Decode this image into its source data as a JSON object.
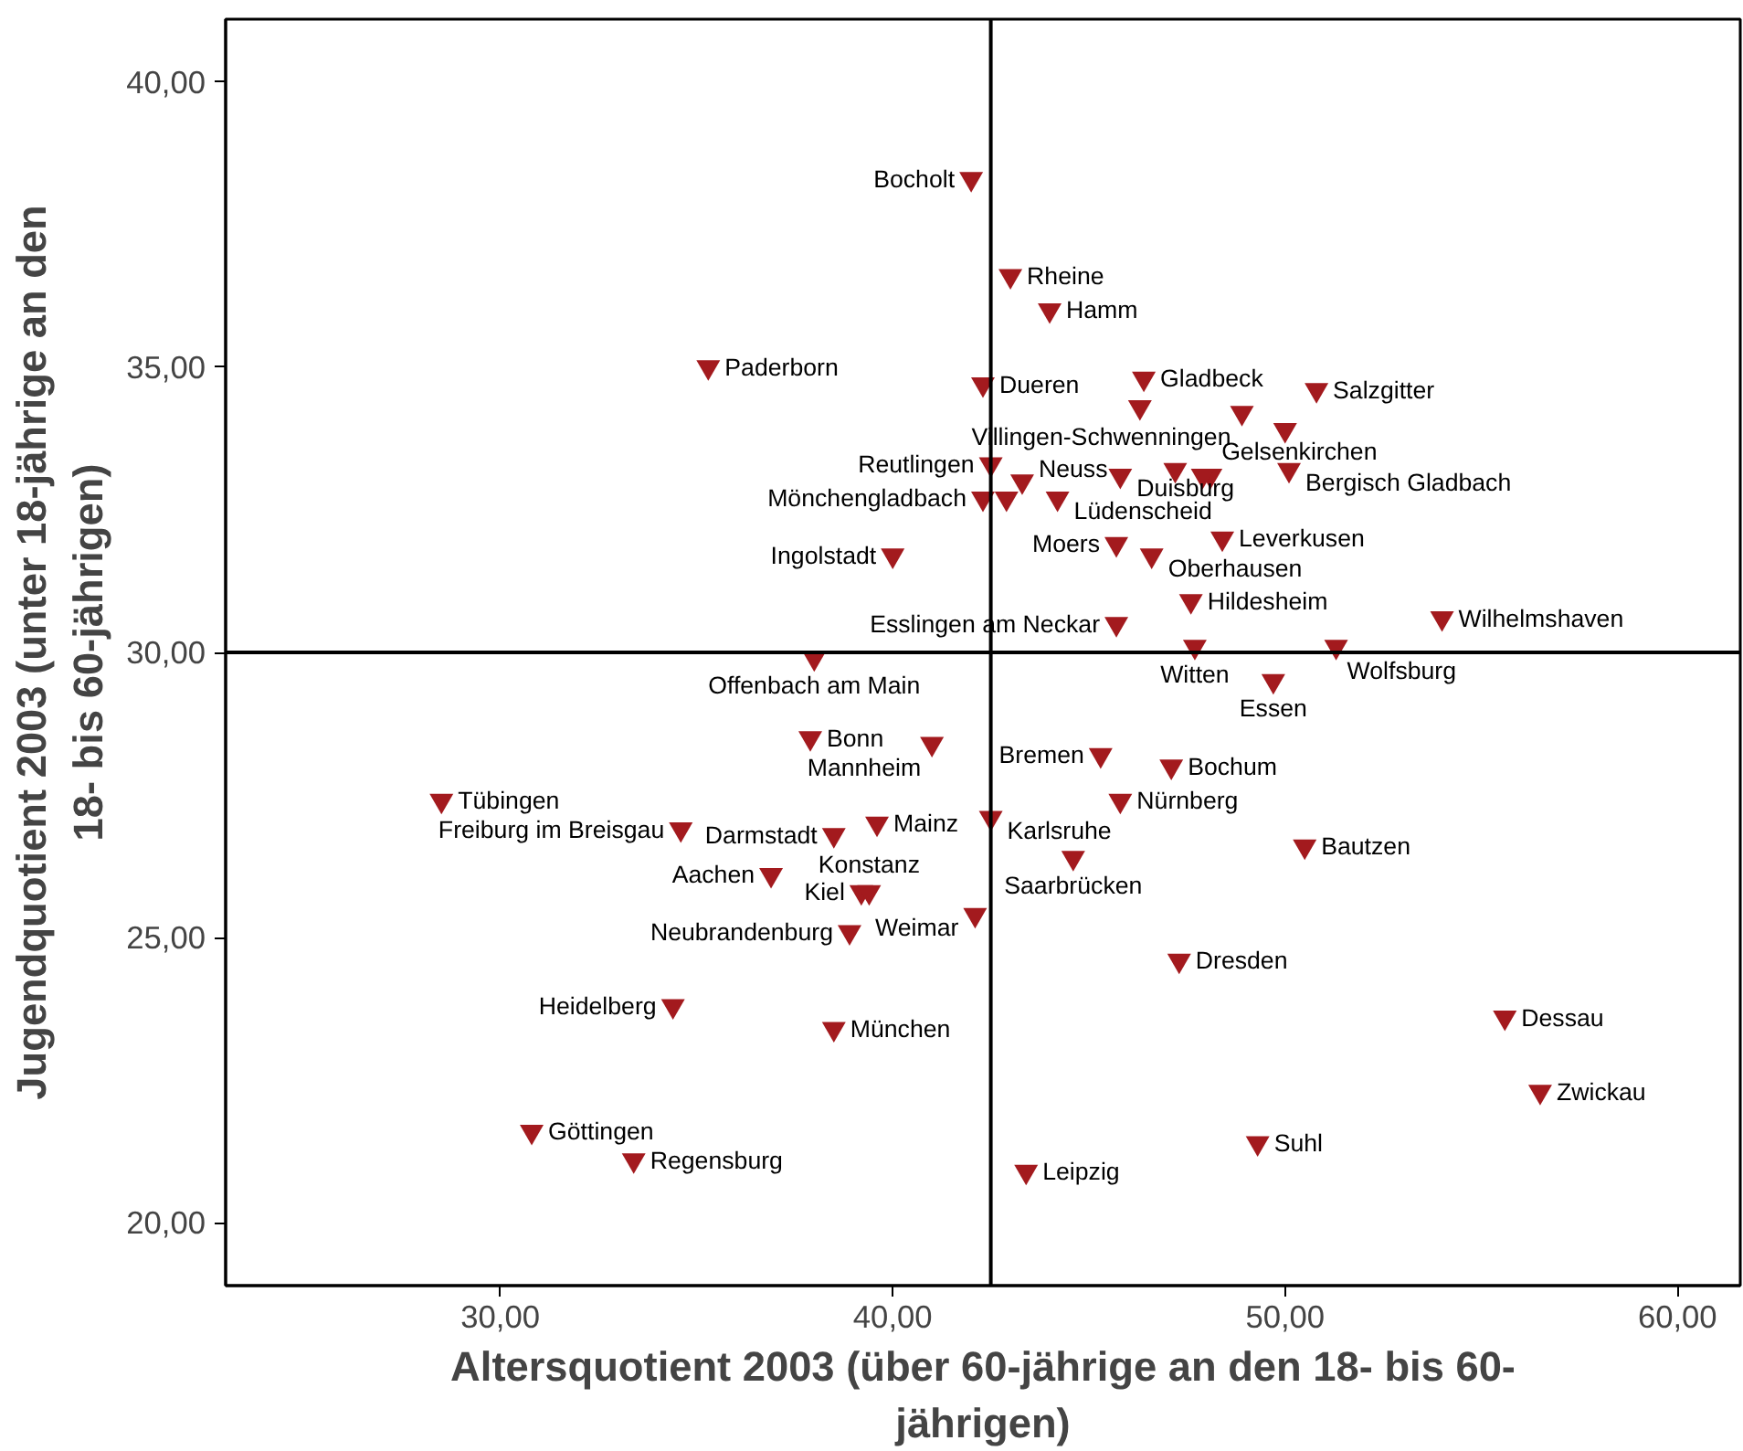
{
  "chart_data": {
    "type": "scatter",
    "xlabel": "Altersquotient 2003 (über 60-jährige an den 18- bis 60-jährigen)",
    "ylabel": "Jugendquotient 2003 (unter 18-jährige an den 18- bis 60-jährigen)",
    "x": [
      42.0,
      43.0,
      44.0,
      35.3,
      42.3,
      46.4,
      46.3,
      50.8,
      48.9,
      50.0,
      42.5,
      43.3,
      42.3,
      42.9,
      44.2,
      45.8,
      47.2,
      48.1,
      47.9,
      50.1,
      40.0,
      45.7,
      46.6,
      48.4,
      47.6,
      45.7,
      38.0,
      47.7,
      51.3,
      49.7,
      54.0,
      37.9,
      41.0,
      45.3,
      47.1,
      45.8,
      42.5,
      44.6,
      50.5,
      28.5,
      34.6,
      38.5,
      39.6,
      36.9,
      39.2,
      39.4,
      42.1,
      38.9,
      47.3,
      34.4,
      38.5,
      55.6,
      56.5,
      49.3,
      43.4,
      30.8,
      33.4
    ],
    "series": [
      {
        "color": "#a31a1e",
        "values": [
          38.3,
          36.6,
          36.0,
          35.0,
          34.7,
          34.8,
          34.3,
          34.6,
          34.2,
          33.9,
          33.3,
          33.0,
          32.7,
          32.7,
          32.7,
          33.1,
          33.2,
          33.1,
          33.1,
          33.2,
          31.7,
          31.9,
          31.7,
          32.0,
          30.9,
          30.5,
          29.9,
          30.1,
          30.1,
          29.5,
          30.6,
          28.5,
          28.4,
          28.2,
          28.0,
          27.4,
          27.1,
          26.4,
          26.6,
          27.4,
          26.9,
          26.8,
          27.0,
          26.1,
          25.8,
          25.8,
          25.4,
          25.1,
          24.6,
          23.8,
          23.4,
          23.6,
          22.3,
          21.4,
          20.9,
          21.6,
          21.1
        ],
        "value_labels": [
          "Bocholt",
          "Rheine",
          "Hamm",
          "Paderborn",
          "Dueren",
          "Gladbeck",
          null,
          "Salzgitter",
          "Villingen-Schwenningen",
          null,
          "Reutlingen",
          "Neuss",
          "Mönchengladbach",
          null,
          "Lüdenscheid",
          "Duisburg",
          null,
          "Gelsenkirchen",
          null,
          "Bergisch Gladbach",
          "Ingolstadt",
          "Moers",
          "Oberhausen",
          "Leverkusen",
          "Hildesheim",
          "Esslingen am Neckar",
          "Offenbach am Main",
          "Witten",
          "Wolfsburg",
          "Essen",
          "Wilhelmshaven",
          "Bonn",
          "Mannheim",
          "Bremen",
          "Bochum",
          "Nürnberg",
          "Karlsruhe",
          "Saarbrücken",
          "Bautzen",
          "Tübingen",
          "Freiburg im Breisgau",
          "Darmstadt",
          "Mainz",
          "Aachen",
          "Kiel",
          "Konstanz",
          "Weimar",
          "Neubrandenburg",
          "Dresden",
          "Heidelberg",
          "München",
          "Dessau",
          "Zwickau",
          "Suhl",
          "Leipzig",
          "Göttingen",
          "Regensburg"
        ]
      }
    ],
    "xlim": [
      23.0,
      61.6
    ],
    "ylim": [
      18.9,
      41.1
    ],
    "xticks": [
      {
        "value": 30,
        "label": "30,00"
      },
      {
        "value": 40,
        "label": "40,00"
      },
      {
        "value": 50,
        "label": "50,00"
      },
      {
        "value": 60,
        "label": "60,00"
      }
    ],
    "yticks": [
      {
        "value": 20,
        "label": "20,00"
      },
      {
        "value": 25,
        "label": "25,00"
      },
      {
        "value": 30,
        "label": "30,00"
      },
      {
        "value": 35,
        "label": "35,00"
      },
      {
        "value": 40,
        "label": "40,00"
      }
    ],
    "ref_lines": [
      {
        "axis": "x",
        "value": 42.5,
        "color": "#000000"
      },
      {
        "axis": "y",
        "value": 30,
        "color": "#000000"
      }
    ],
    "marker": "triangle",
    "grid": false
  }
}
